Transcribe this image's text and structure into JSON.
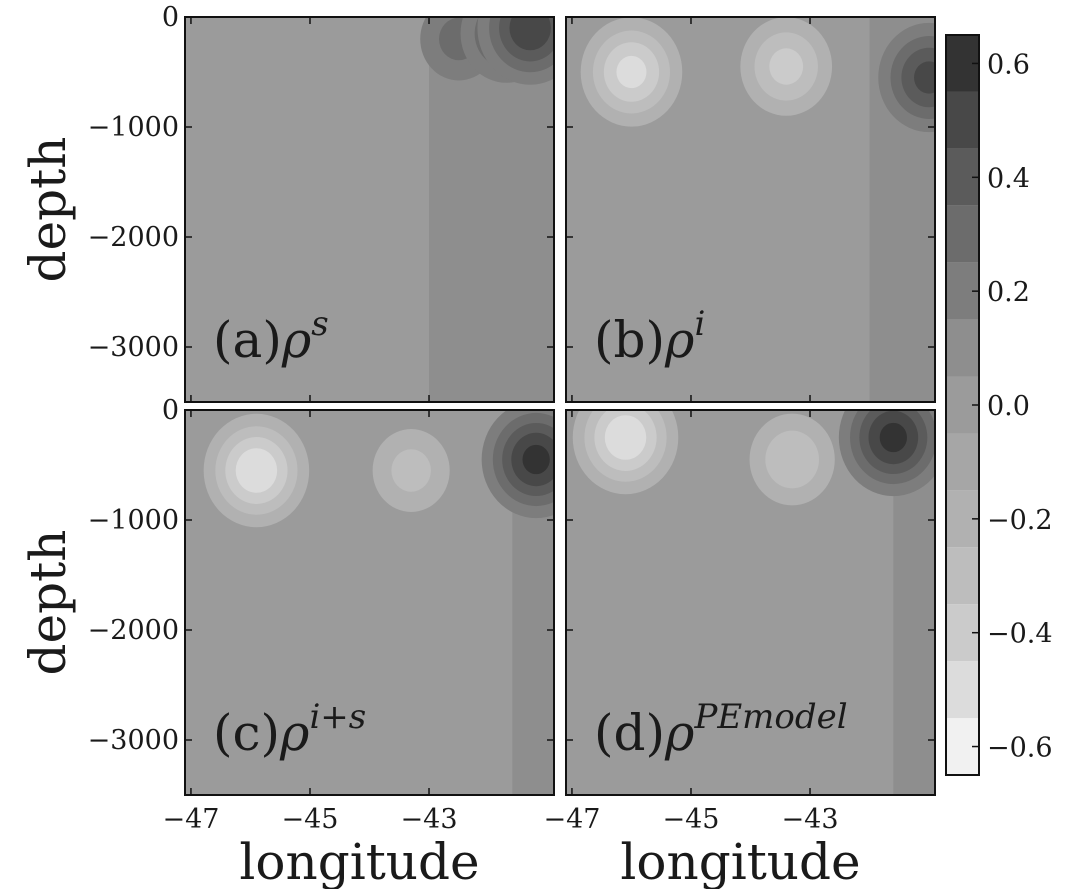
{
  "chart_data": {
    "type": "heatmap",
    "subtype": "filled-contour",
    "layout": "2x2 panels with shared colorbar",
    "panels": [
      {
        "id": "a",
        "label": "(a)",
        "symbol": "ρ",
        "superscript": "s",
        "xlim": [
          -47.1,
          -40.9
        ],
        "ylim": [
          -3500,
          0
        ],
        "features": [
          {
            "kind": "band",
            "x": [
              -43.0,
              -40.9
            ],
            "value": 0.05
          },
          {
            "kind": "blob",
            "lon": -44.3,
            "depth": -150,
            "value": -0.15
          },
          {
            "kind": "blob",
            "lon": -42.5,
            "depth": -200,
            "value": 0.3
          },
          {
            "kind": "blob",
            "lon": -41.7,
            "depth": -150,
            "value": 0.4
          },
          {
            "kind": "blob",
            "lon": -41.3,
            "depth": -100,
            "value": 0.55
          }
        ]
      },
      {
        "id": "b",
        "label": "(b)",
        "symbol": "ρ",
        "superscript": "i",
        "xlim": [
          -47.1,
          -40.9
        ],
        "ylim": [
          -3500,
          0
        ],
        "features": [
          {
            "kind": "band",
            "x": [
              -42.0,
              -40.9
            ],
            "value": 0.05
          },
          {
            "kind": "blob",
            "lon": -46.0,
            "depth": -500,
            "value": -0.5
          },
          {
            "kind": "blob",
            "lon": -43.4,
            "depth": -450,
            "value": -0.4
          },
          {
            "kind": "blob",
            "lon": -41.0,
            "depth": -550,
            "value": 0.5
          }
        ]
      },
      {
        "id": "c",
        "label": "(c)",
        "symbol": "ρ",
        "superscript": "i+s",
        "xlim": [
          -47.1,
          -40.9
        ],
        "ylim": [
          -3500,
          0
        ],
        "features": [
          {
            "kind": "band",
            "x": [
              -41.6,
              -40.9
            ],
            "value": 0.05
          },
          {
            "kind": "blob",
            "lon": -45.9,
            "depth": -550,
            "value": -0.55
          },
          {
            "kind": "blob",
            "lon": -43.3,
            "depth": -550,
            "value": -0.3
          },
          {
            "kind": "blob",
            "lon": -41.2,
            "depth": -450,
            "value": 0.6
          }
        ]
      },
      {
        "id": "d",
        "label": "(d)",
        "symbol": "ρ",
        "superscript": "PEmodel",
        "xlim": [
          -47.1,
          -40.9
        ],
        "ylim": [
          -3500,
          0
        ],
        "features": [
          {
            "kind": "band",
            "x": [
              -41.6,
              -40.9
            ],
            "value": 0.05
          },
          {
            "kind": "blob",
            "lon": -46.1,
            "depth": -250,
            "value": -0.55
          },
          {
            "kind": "blob",
            "lon": -43.3,
            "depth": -450,
            "value": -0.35
          },
          {
            "kind": "blob",
            "lon": -41.6,
            "depth": -250,
            "value": 0.6
          }
        ]
      }
    ],
    "x_axis": {
      "label": "longitude",
      "ticks": [
        -47,
        -45,
        -43
      ],
      "tick_labels": [
        "−47",
        "−45",
        "−43"
      ]
    },
    "y_axis": {
      "label": "depth",
      "ticks": [
        0,
        -1000,
        -2000,
        -3000
      ],
      "tick_labels": [
        "0",
        "−1000",
        "−2000",
        "−3000"
      ]
    },
    "colorbar": {
      "levels": [
        -0.65,
        -0.55,
        -0.45,
        -0.35,
        -0.25,
        -0.15,
        -0.05,
        0.05,
        0.15,
        0.25,
        0.35,
        0.45,
        0.55,
        0.65
      ],
      "colors": [
        "#f1f1f1",
        "#dcdcdc",
        "#cbcbcb",
        "#bdbdbd",
        "#b1b1b1",
        "#a6a6a6",
        "#9b9b9b",
        "#8e8e8e",
        "#7d7d7d",
        "#6c6c6c",
        "#5b5b5b",
        "#484848",
        "#333333"
      ],
      "ticks": [
        0.6,
        0.4,
        0.2,
        0.0,
        -0.2,
        -0.4,
        -0.6
      ],
      "tick_labels": [
        "0.6",
        "0.4",
        "0.2",
        "0.0",
        "−0.2",
        "−0.4",
        "−0.6"
      ]
    },
    "grid": false,
    "legend": "none"
  }
}
